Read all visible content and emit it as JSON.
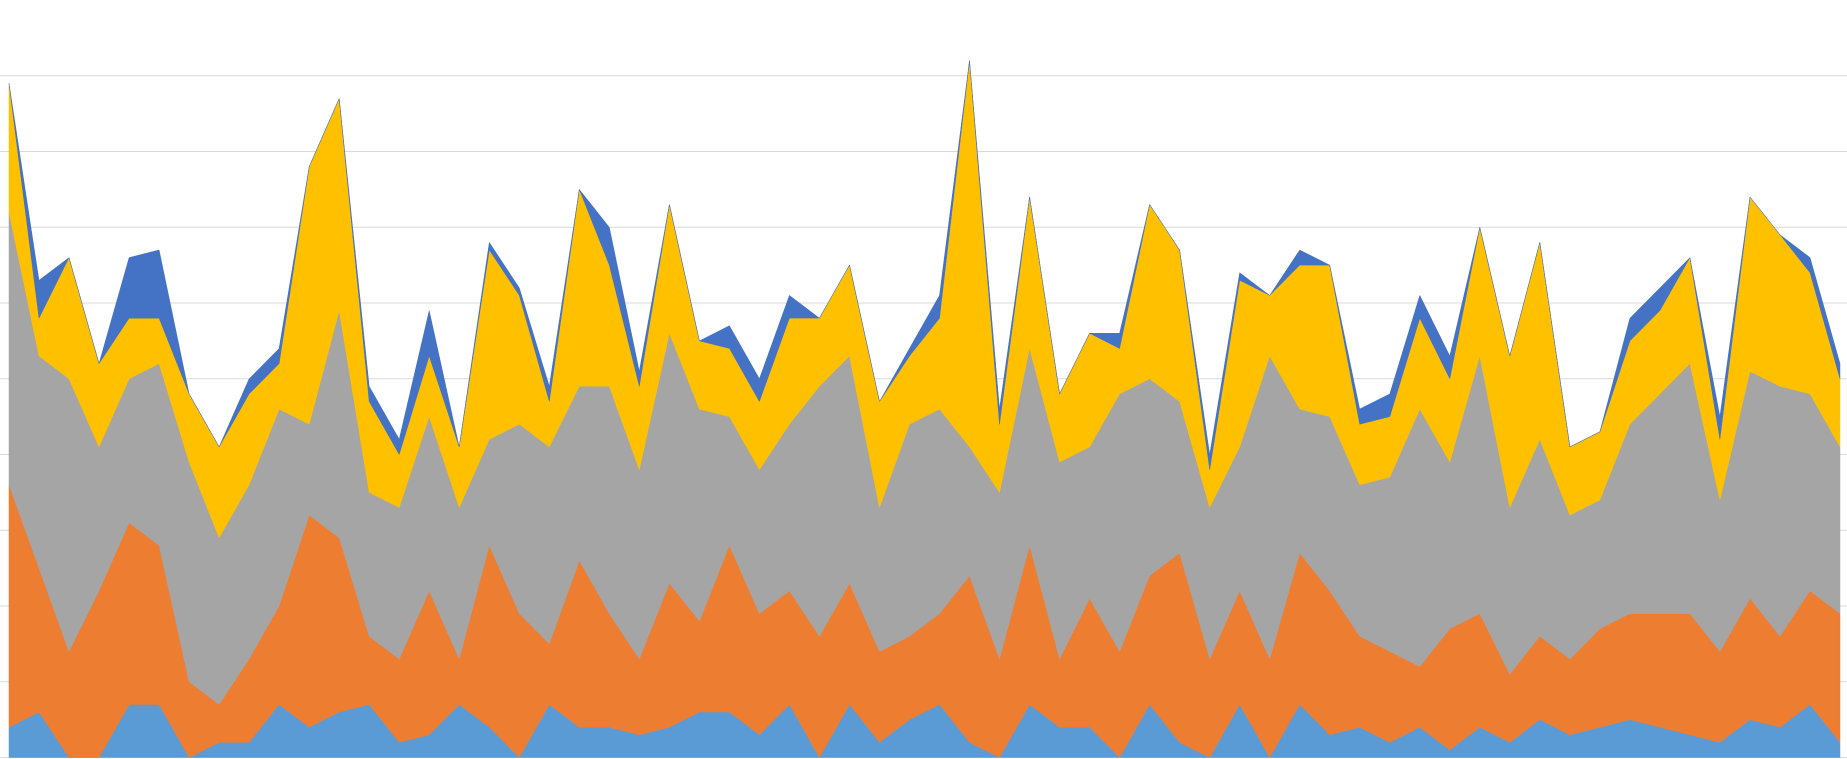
{
  "chart_data": {
    "type": "stacked_area",
    "ylim": [
      0,
      10
    ],
    "yticks": [
      0,
      1,
      2,
      3,
      4,
      5,
      6,
      7,
      8,
      9
    ],
    "grid": true,
    "series": [
      {
        "color": "#5b9bd5",
        "values": [
          0.4,
          0.6,
          0,
          0,
          0.7,
          0.7,
          0,
          0.2,
          0.2,
          0.7,
          0.4,
          0.6,
          0.7,
          0.2,
          0.3,
          0.7,
          0.4,
          0,
          0.7,
          0.4,
          0.4,
          0.3,
          0.4,
          0.6,
          0.6,
          0.3,
          0.7,
          0,
          0.7,
          0.2,
          0.5,
          0.7,
          0.2,
          0,
          0.7,
          0.4,
          0.4,
          0,
          0.7,
          0.2,
          0,
          0.7,
          0,
          0.7,
          0.3,
          0.4,
          0.2,
          0.4,
          0.1,
          0.4,
          0.2,
          0.5,
          0.3,
          0.4,
          0.5,
          0.4,
          0.3,
          0.2,
          0.5,
          0.4,
          0.7,
          0.2
        ]
      },
      {
        "color": "#ed7d31",
        "values": [
          3.2,
          1.9,
          1.4,
          2.2,
          2.4,
          2.1,
          1.0,
          0.5,
          1.1,
          1.3,
          2.8,
          2.3,
          0.9,
          1.1,
          1.9,
          0.6,
          2.4,
          1.9,
          0.8,
          2.2,
          1.5,
          1.0,
          1.9,
          1.2,
          2.2,
          1.6,
          1.5,
          1.6,
          1.6,
          1.2,
          1.1,
          1.2,
          2.2,
          1.3,
          2.1,
          0.9,
          1.7,
          1.4,
          1.7,
          2.5,
          1.3,
          1.5,
          1.3,
          2.0,
          1.9,
          1.2,
          1.2,
          0.8,
          1.6,
          1.5,
          0.9,
          1.1,
          1.0,
          1.3,
          1.4,
          1.5,
          1.6,
          1.2,
          1.6,
          1.2,
          1.5,
          1.7
        ]
      },
      {
        "color": "#a5a5a5",
        "values": [
          3.6,
          2.8,
          3.6,
          1.9,
          1.9,
          2.4,
          2.9,
          2.2,
          2.3,
          2.6,
          1.2,
          3.0,
          1.9,
          2.0,
          2.3,
          2.0,
          1.4,
          2.5,
          2.6,
          2.3,
          3.0,
          2.5,
          3.3,
          2.8,
          1.7,
          1.9,
          2.2,
          3.3,
          3.0,
          1.9,
          2.8,
          2.7,
          1.7,
          2.2,
          2.6,
          2.6,
          2.0,
          3.4,
          2.6,
          2.0,
          2.0,
          1.9,
          4.0,
          1.9,
          2.3,
          2.0,
          2.3,
          3.4,
          2.2,
          3.4,
          2.2,
          2.6,
          1.9,
          1.7,
          2.5,
          2.9,
          3.3,
          2.0,
          3.0,
          3.3,
          2.6,
          2.2
        ]
      },
      {
        "color": "#ffc000",
        "values": [
          1.7,
          0.5,
          1.6,
          1.1,
          0.8,
          0.6,
          0.9,
          1.2,
          1.2,
          0.6,
          3.4,
          2.8,
          1.2,
          0.7,
          0.8,
          0.8,
          2.5,
          1.7,
          0.6,
          2.6,
          1.6,
          1.1,
          1.7,
          0.9,
          0.9,
          0.9,
          1.4,
          0.9,
          1.2,
          1.4,
          0.9,
          1.2,
          5.1,
          0.9,
          2.0,
          0.9,
          1.5,
          0.6,
          2.3,
          2.0,
          0.5,
          2.2,
          0.8,
          1.9,
          2.0,
          0.8,
          0.8,
          1.2,
          1.1,
          1.7,
          2.0,
          2.6,
          0.9,
          0.9,
          1.1,
          1.1,
          1.4,
          0.8,
          2.3,
          2.0,
          1.6,
          0.9
        ]
      },
      {
        "color": "#4472c4",
        "values": [
          0,
          0.5,
          0,
          0,
          0.8,
          0.9,
          0,
          0,
          0.2,
          0.2,
          0,
          0,
          0.2,
          0.2,
          0.6,
          0,
          0.1,
          0.1,
          0.2,
          0,
          0.5,
          0.2,
          0,
          0,
          0.3,
          0.3,
          0.3,
          0,
          0,
          0,
          0.1,
          0.3,
          0,
          0.2,
          0,
          0,
          0,
          0.2,
          0,
          0,
          0.2,
          0.1,
          0,
          0.2,
          0,
          0.2,
          0.3,
          0.3,
          0.3,
          0,
          0,
          0,
          0,
          0,
          0.3,
          0.3,
          0,
          0.3,
          0,
          0,
          0.2,
          0.2
        ]
      }
    ]
  }
}
